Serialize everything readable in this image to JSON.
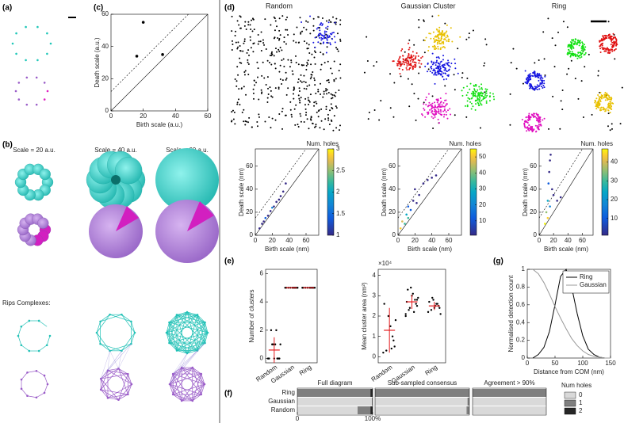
{
  "panel_labels": [
    "(a)",
    "(b)",
    "(c)",
    "(d)",
    "(e)",
    "(f)",
    "(g)"
  ],
  "illustrations": {
    "b_scales": [
      "Scale = 20 a.u.",
      "Scale = 40 a.u.",
      "Scale = 60 a.u."
    ],
    "rips_label": "Rips Complexes:",
    "d_titles": [
      "Random",
      "Gaussian Cluster",
      "Ring"
    ]
  },
  "chart_data": [
    {
      "type": "scatter",
      "xlabel": "Birth scale (a.u.)",
      "ylabel": "Death scale (a.u.)",
      "x": [
        16,
        20,
        32
      ],
      "y": [
        34,
        55,
        35
      ],
      "color": "#000000",
      "xlim": [
        0,
        60
      ],
      "ylim": [
        0,
        60
      ],
      "xticks": [
        0,
        20,
        40,
        60
      ],
      "yticks": [
        0,
        20,
        40,
        60
      ]
    },
    {
      "type": "scatter",
      "xlabel": "Birth scale (nm)",
      "ylabel": "Death scale (nm)",
      "x": [
        5,
        8,
        10,
        12,
        15,
        18,
        20,
        22,
        25,
        28,
        30,
        33,
        36
      ],
      "y": [
        6,
        10,
        12,
        15,
        17,
        21,
        24,
        25,
        29,
        31,
        34,
        38,
        45
      ],
      "c": [
        1,
        1,
        1,
        1.2,
        1,
        1,
        1.5,
        1,
        1,
        1,
        1,
        1,
        1
      ],
      "xlim": [
        0,
        75
      ],
      "ylim": [
        0,
        75
      ],
      "xticks": [
        0,
        20,
        40,
        60
      ],
      "yticks": [
        0,
        20,
        40,
        60
      ],
      "colorbar": {
        "label": "Num. holes",
        "lim": [
          1,
          3
        ],
        "ticks": [
          1,
          1.5,
          2,
          2.5,
          3
        ]
      }
    },
    {
      "type": "scatter",
      "xlabel": "Birth scale (nm)",
      "ylabel": "Death scale (nm)",
      "x": [
        3,
        5,
        8,
        10,
        12,
        15,
        18,
        20,
        25,
        30,
        35,
        40,
        45,
        12,
        22
      ],
      "y": [
        6,
        12,
        10,
        18,
        25,
        22,
        30,
        40,
        35,
        45,
        48,
        50,
        52,
        15,
        28
      ],
      "c": [
        50,
        40,
        30,
        20,
        10,
        5,
        3,
        2,
        1,
        1,
        1,
        1,
        1,
        25,
        2
      ],
      "xlim": [
        0,
        75
      ],
      "ylim": [
        0,
        75
      ],
      "xticks": [
        0,
        20,
        40,
        60
      ],
      "yticks": [
        0,
        20,
        40,
        60
      ],
      "colorbar": {
        "label": "Num. holes",
        "lim": [
          1,
          55
        ],
        "ticks": [
          10,
          20,
          30,
          40,
          50
        ]
      }
    },
    {
      "type": "scatter",
      "xlabel": "Birth scale (nm)",
      "ylabel": "Death scale (nm)",
      "x": [
        8,
        10,
        12,
        13,
        14,
        15,
        16,
        18,
        20,
        25,
        30,
        12,
        15
      ],
      "y": [
        10,
        20,
        30,
        45,
        55,
        65,
        70,
        40,
        35,
        30,
        33,
        15,
        25
      ],
      "c": [
        45,
        30,
        20,
        5,
        2,
        1,
        1,
        3,
        2,
        1,
        1,
        40,
        10
      ],
      "xlim": [
        0,
        75
      ],
      "ylim": [
        0,
        75
      ],
      "xticks": [
        0,
        20,
        40,
        60
      ],
      "yticks": [
        0,
        20,
        40,
        60
      ],
      "colorbar": {
        "label": "Num. holes",
        "lim": [
          1,
          47
        ],
        "ticks": [
          10,
          20,
          30,
          40
        ]
      }
    },
    {
      "type": "strip",
      "ylabel": "Number of clusters",
      "categories": [
        "Random",
        "Gaussian",
        "Ring"
      ],
      "values": [
        0.6,
        5,
        5
      ],
      "errors": [
        0.9,
        0,
        0
      ],
      "points": [
        [
          0,
          0,
          0,
          1,
          1,
          2,
          0,
          1,
          0,
          2,
          0,
          1
        ],
        [
          5,
          5,
          5,
          5,
          5,
          5,
          5,
          5,
          5,
          5
        ],
        [
          5,
          5,
          5,
          5,
          5,
          5,
          5,
          5,
          5,
          5
        ]
      ],
      "ylim": [
        -0.3,
        6.3
      ],
      "yticks": [
        0,
        2,
        4,
        6
      ],
      "point_color": "#000000",
      "stat_color": "#e41a1c"
    },
    {
      "type": "strip",
      "ylabel": "Mean cluster area (nm²)",
      "y_multiplier": "×10⁴",
      "categories": [
        "Random",
        "Gaussian",
        "Ring"
      ],
      "values": [
        1.3,
        2.7,
        2.5
      ],
      "errors": [
        1.1,
        0.35,
        0.2
      ],
      "points": [
        [
          0.2,
          0.5,
          1,
          1.5,
          2,
          0.3,
          2.6,
          1.8,
          0.8,
          0.4
        ],
        [
          2.1,
          2.5,
          2.8,
          3.1,
          3.4,
          2.3,
          2.7,
          2.9,
          2.6,
          2.2,
          3.0,
          2.4,
          3.3,
          2.0,
          2.8
        ],
        [
          2.2,
          2.4,
          2.6,
          2.5,
          2.8,
          2.3,
          2.7,
          2.1,
          2.5,
          2.6,
          2.4,
          2.9
        ]
      ],
      "ylim": [
        -0.3,
        4.3
      ],
      "yticks": [
        0,
        1,
        2,
        3,
        4
      ],
      "point_color": "#000000",
      "stat_color": "#e41a1c"
    },
    {
      "type": "line",
      "xlabel": "Distance from COM (nm)",
      "ylabel": "Normalised detection count",
      "x": [
        0,
        10,
        20,
        30,
        40,
        50,
        60,
        70,
        80,
        90,
        100,
        110,
        120,
        130,
        140,
        150
      ],
      "series": [
        {
          "name": "Ring",
          "color": "#000000",
          "values": [
            null,
            0,
            0.04,
            0.12,
            0.3,
            0.6,
            0.92,
            1,
            0.8,
            0.5,
            0.25,
            0.1,
            0.04,
            0.01,
            0,
            0
          ]
        },
        {
          "name": "Gaussian",
          "color": "#999999",
          "values": [
            null,
            1,
            0.95,
            0.85,
            0.72,
            0.58,
            0.45,
            0.33,
            0.22,
            0.14,
            0.08,
            0.04,
            0.02,
            0.01,
            0,
            0
          ]
        }
      ],
      "xlim": [
        0,
        150
      ],
      "ylim": [
        0,
        1
      ],
      "xticks": [
        0,
        50,
        100,
        150
      ],
      "yticks": [
        0,
        0.2,
        0.4,
        0.6,
        0.8,
        1
      ],
      "legend": "upper right"
    },
    {
      "type": "stacked_bar",
      "orientation": "horizontal",
      "categories": [
        "Ring",
        "Gaussian",
        "Random"
      ],
      "series": [
        {
          "name": "0",
          "color": "#d9d9d9"
        },
        {
          "name": "1",
          "color": "#7f7f7f"
        },
        {
          "name": "2",
          "color": "#262626"
        }
      ],
      "panels": [
        {
          "title": "Full diagram",
          "values": [
            [
              0,
              97,
              3
            ],
            [
              99,
              1,
              0
            ],
            [
              80,
              17,
              3
            ]
          ]
        },
        {
          "title": "Sub-sampled consensus",
          "values": [
            [
              0,
              100,
              0
            ],
            [
              98,
              2,
              0
            ],
            [
              97,
              3,
              0
            ]
          ]
        },
        {
          "title": "Agreement > 90%",
          "values": [
            [
              0,
              100,
              0
            ],
            [
              100,
              0,
              0
            ],
            [
              100,
              0,
              0
            ]
          ]
        }
      ],
      "xlim": [
        0,
        100
      ],
      "xticks": [
        0,
        {
          "value": 100,
          "label": "100%"
        }
      ],
      "legend_title": "Num holes"
    }
  ]
}
